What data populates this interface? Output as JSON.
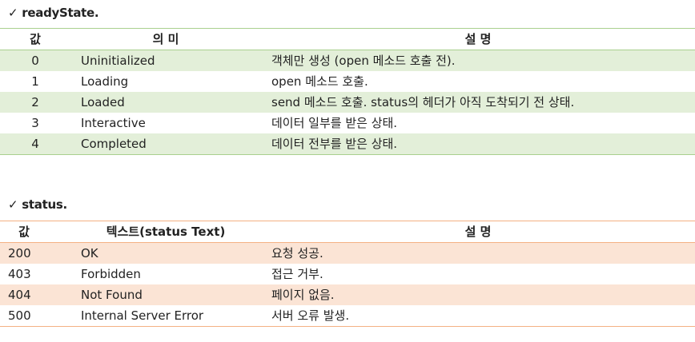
{
  "section1": {
    "check": "✓",
    "title": "readyState.",
    "headers": {
      "value": "값",
      "meaning": "의 미",
      "description": "설 명"
    },
    "rows": [
      {
        "value": "0",
        "meaning": "Uninitialized",
        "description": "객체만 생성 (open 메소드 호출 전)."
      },
      {
        "value": "1",
        "meaning": "Loading",
        "description": "open 메소드 호출."
      },
      {
        "value": "2",
        "meaning": "Loaded",
        "description": "send 메소드 호출. status의 헤더가 아직 도착되기 전 상태."
      },
      {
        "value": "3",
        "meaning": "Interactive",
        "description": "데이터 일부를 받은 상태."
      },
      {
        "value": "4",
        "meaning": "Completed",
        "description": "데이터 전부를 받은 상태."
      }
    ]
  },
  "section2": {
    "check": "✓",
    "title": "status.",
    "headers": {
      "value": "값",
      "text": "텍스트(status Text)",
      "description": "설 명"
    },
    "rows": [
      {
        "value": "200",
        "text": "OK",
        "description": "요청 성공."
      },
      {
        "value": "403",
        "text": "Forbidden",
        "description": "접근 거부."
      },
      {
        "value": "404",
        "text": "Not Found",
        "description": "페이지 없음."
      },
      {
        "value": "500",
        "text": "Internal Server Error",
        "description": "서버 오류 발생."
      }
    ]
  },
  "colors": {
    "green_band": "#e3efd9",
    "green_line": "#a9d08e",
    "orange_band": "#fbe4d5",
    "orange_line": "#f4b183"
  }
}
